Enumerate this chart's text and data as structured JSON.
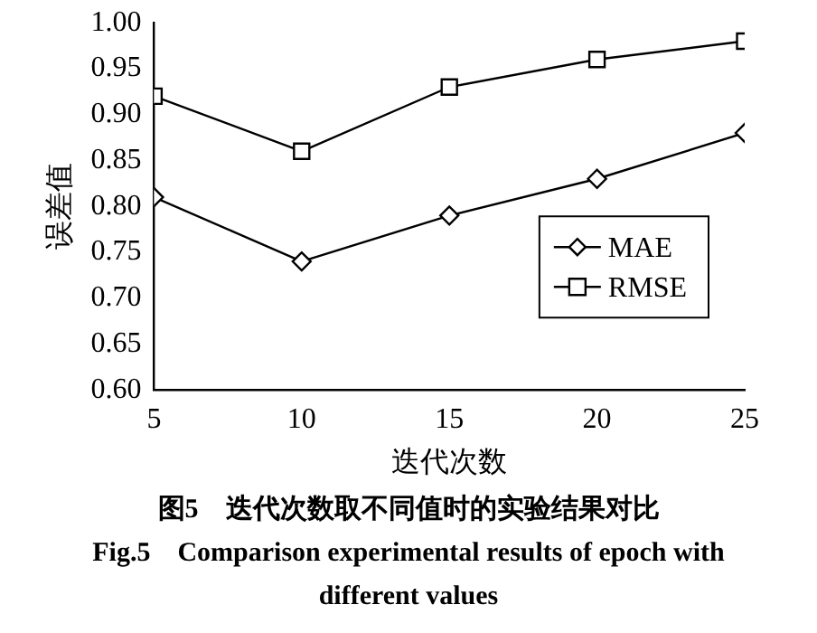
{
  "chart_data": {
    "type": "line",
    "xlabel": "迭代次数",
    "ylabel": "误差值",
    "x": [
      5,
      10,
      15,
      20,
      25
    ],
    "series": [
      {
        "name": "MAE",
        "color": "#000000",
        "marker": "diamond",
        "values": [
          0.81,
          0.74,
          0.79,
          0.83,
          0.88
        ]
      },
      {
        "name": "RMSE",
        "color": "#000000",
        "marker": "square",
        "values": [
          0.92,
          0.86,
          0.93,
          0.96,
          0.98
        ]
      }
    ],
    "xlim": [
      5,
      25
    ],
    "xticks": [
      5,
      10,
      15,
      20,
      25
    ],
    "ylim": [
      0.6,
      1.0
    ],
    "yticks": [
      {
        "value": 0.6,
        "label": "0.60"
      },
      {
        "value": 0.65,
        "label": "0.65"
      },
      {
        "value": 0.7,
        "label": "0.70"
      },
      {
        "value": 0.75,
        "label": "0.75"
      },
      {
        "value": 0.8,
        "label": "0.80"
      },
      {
        "value": 0.85,
        "label": "0.85"
      },
      {
        "value": 0.9,
        "label": "0.90"
      },
      {
        "value": 0.95,
        "label": "0.95"
      },
      {
        "value": 1.0,
        "label": "1.00"
      }
    ],
    "grid": false,
    "legend": "bottom right",
    "line_style": "solid",
    "annotations": [
      "图5　迭代次数取不同值时的实验结果对比",
      "Fig.5　Comparison experimental results of epoch with different values"
    ]
  }
}
